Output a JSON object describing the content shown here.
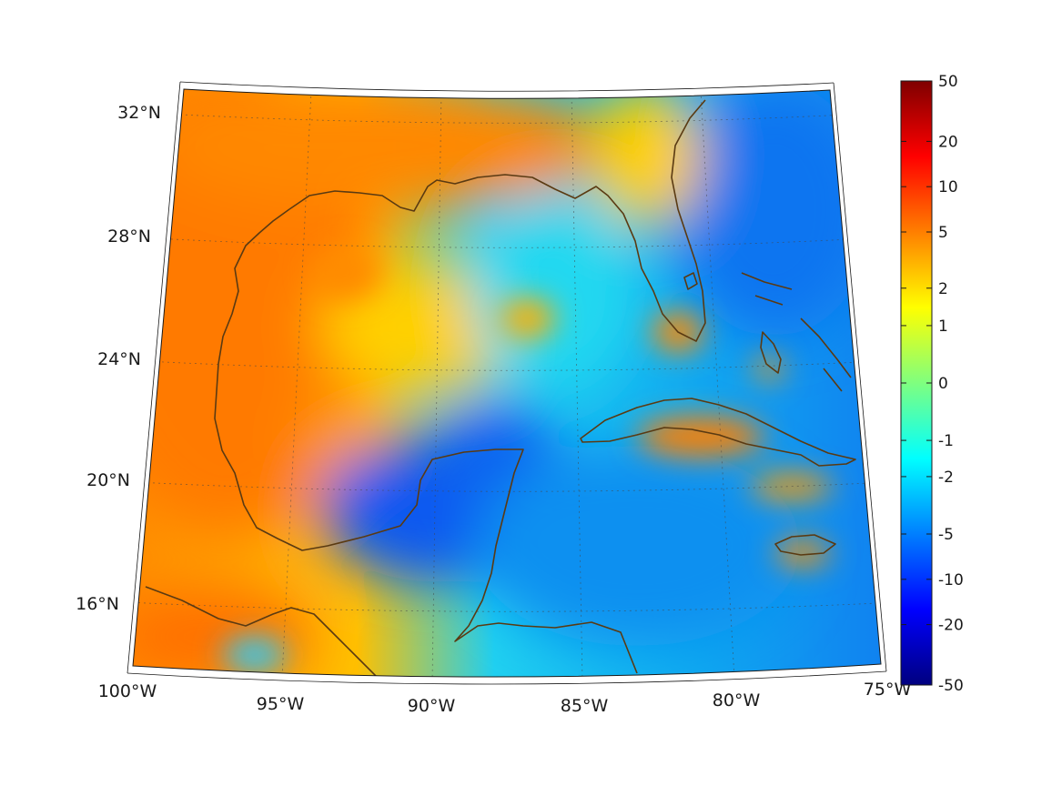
{
  "map": {
    "type": "heatmap",
    "projection": "conic",
    "region": {
      "lon_range_deg_w": [
        100,
        75
      ],
      "lat_range_deg_n": [
        14,
        33
      ]
    },
    "lat_ticks": [
      {
        "value": 32,
        "label": "32°N"
      },
      {
        "value": 28,
        "label": "28°N"
      },
      {
        "value": 24,
        "label": "24°N"
      },
      {
        "value": 20,
        "label": "20°N"
      },
      {
        "value": 16,
        "label": "16°N"
      }
    ],
    "lon_ticks": [
      {
        "value": -100,
        "label": "100°W"
      },
      {
        "value": -95,
        "label": "95°W"
      },
      {
        "value": -90,
        "label": "90°W"
      },
      {
        "value": -85,
        "label": "85°W"
      },
      {
        "value": -80,
        "label": "80°W"
      },
      {
        "value": -75,
        "label": "75°W"
      }
    ],
    "grid": true,
    "coastline_color": "#5a3a12",
    "frame_color": "#1a1a1a"
  },
  "colorbar": {
    "position": "right",
    "scale": "nonlinear",
    "range": [
      -50,
      50
    ],
    "ticks": [
      {
        "value": 50,
        "label": "50"
      },
      {
        "value": 20,
        "label": "20"
      },
      {
        "value": 10,
        "label": "10"
      },
      {
        "value": 5,
        "label": "5"
      },
      {
        "value": 2,
        "label": "2"
      },
      {
        "value": 1,
        "label": "1"
      },
      {
        "value": 0,
        "label": "0"
      },
      {
        "value": -1,
        "label": "-1"
      },
      {
        "value": -2,
        "label": "-2"
      },
      {
        "value": -5,
        "label": "-5"
      },
      {
        "value": -10,
        "label": "-10"
      },
      {
        "value": -20,
        "label": "-20"
      },
      {
        "value": -50,
        "label": "-50"
      }
    ],
    "colormap": "jet",
    "colors": [
      "#7f0000",
      "#ff0000",
      "#ff7f00",
      "#ffff00",
      "#7fff7f",
      "#00ffff",
      "#007fff",
      "#0000ff",
      "#00007f"
    ]
  },
  "field_regions": [
    {
      "name": "western-gulf-high",
      "value": 5
    },
    {
      "name": "southern-mexico-high",
      "value": 5
    },
    {
      "name": "bay-of-campeche-low",
      "value": -10
    },
    {
      "name": "yucatan-low",
      "value": -5
    },
    {
      "name": "western-atlantic-low",
      "value": -5
    },
    {
      "name": "caribbean-low",
      "value": -3
    },
    {
      "name": "central-gulf-mixed",
      "value": -1
    },
    {
      "name": "south-florida-high",
      "value": 5
    },
    {
      "name": "cuba-high",
      "value": 5
    },
    {
      "name": "jamaica-high",
      "value": 4
    },
    {
      "name": "northeast-gulf-high",
      "value": 3
    }
  ]
}
